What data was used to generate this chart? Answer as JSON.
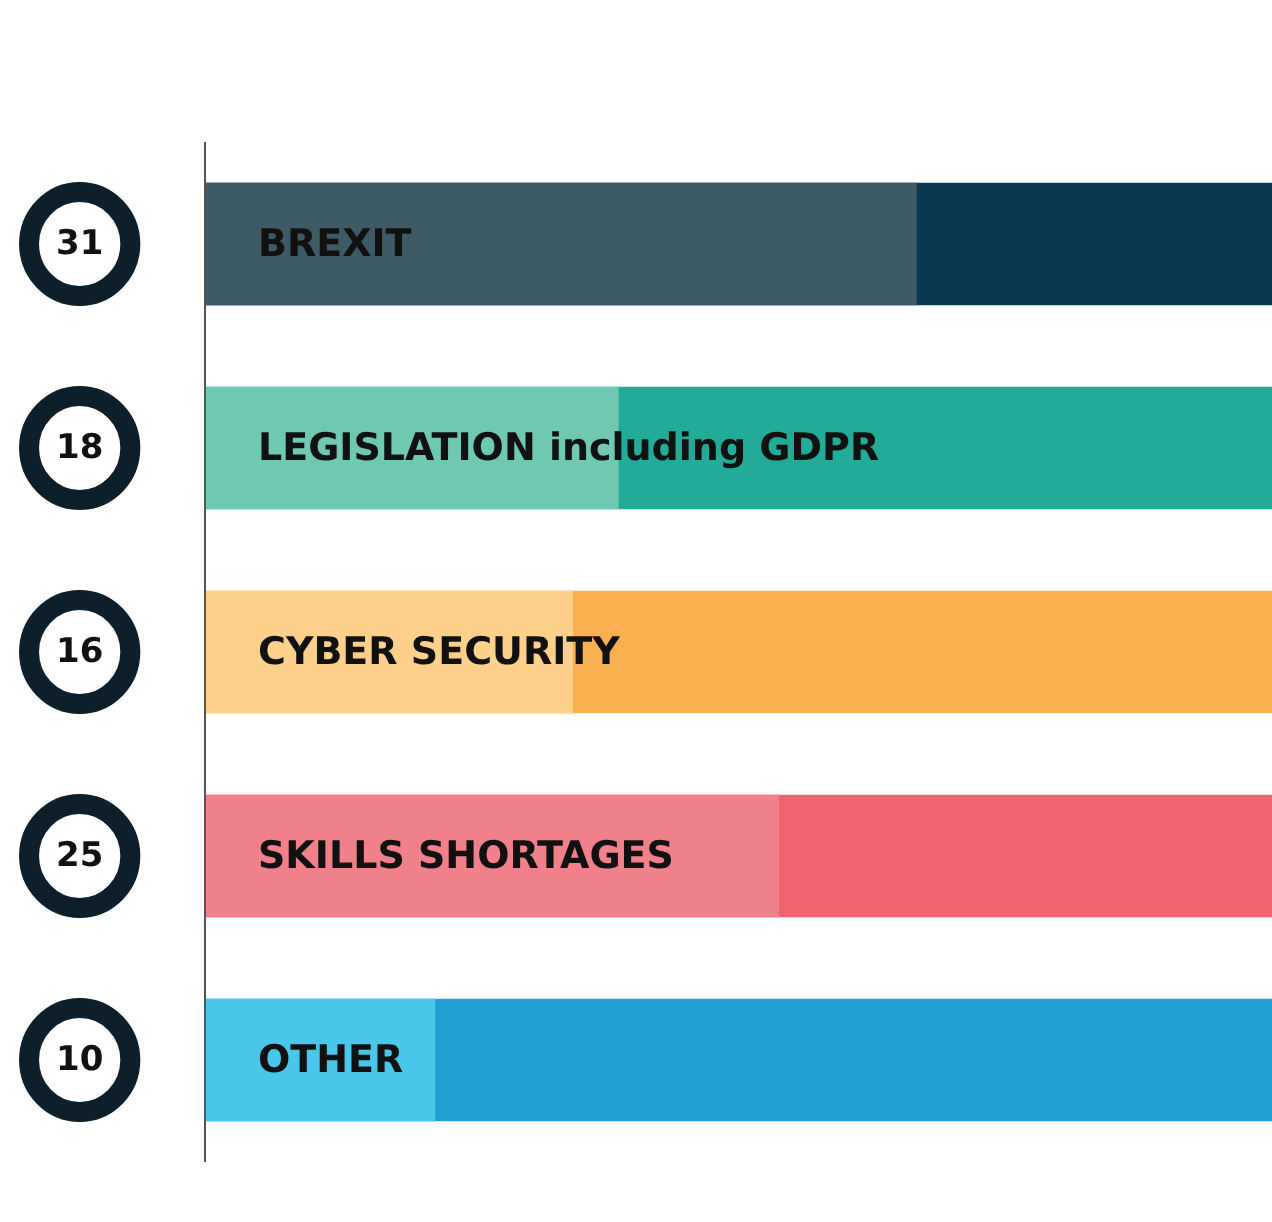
{
  "chart_data": {
    "type": "bar",
    "orientation": "horizontal",
    "categories": [
      "BREXIT",
      "LEGISLATION including GDPR",
      "CYBER SECURITY",
      "SKILLS SHORTAGES",
      "OTHER"
    ],
    "values": [
      31,
      18,
      16,
      25,
      10
    ],
    "colors": [
      "#3d5a66",
      "#6fc8b2",
      "#fdd08c",
      "#f08089",
      "#49c6ea"
    ],
    "xlim": [
      0,
      46.5
    ],
    "tick_labels": false,
    "data_labels": true,
    "bands": [
      {
        "axis": "y",
        "from": "BREXIT",
        "to": "BREXIT",
        "color": "#0b3954"
      },
      {
        "axis": "y",
        "from": "LEGISLATION including GDPR",
        "to": "LEGISLATION including GDPR",
        "color": "#22ab98"
      },
      {
        "axis": "y",
        "from": "CYBER SECURITY",
        "to": "CYBER SECURITY",
        "color": "#f9b050"
      },
      {
        "axis": "y",
        "from": "SKILLS SHORTAGES",
        "to": "SKILLS SHORTAGES",
        "color": "#ef646c"
      },
      {
        "axis": "y",
        "from": "OTHER",
        "to": "OTHER",
        "color": "#1f9fd4"
      }
    ]
  }
}
